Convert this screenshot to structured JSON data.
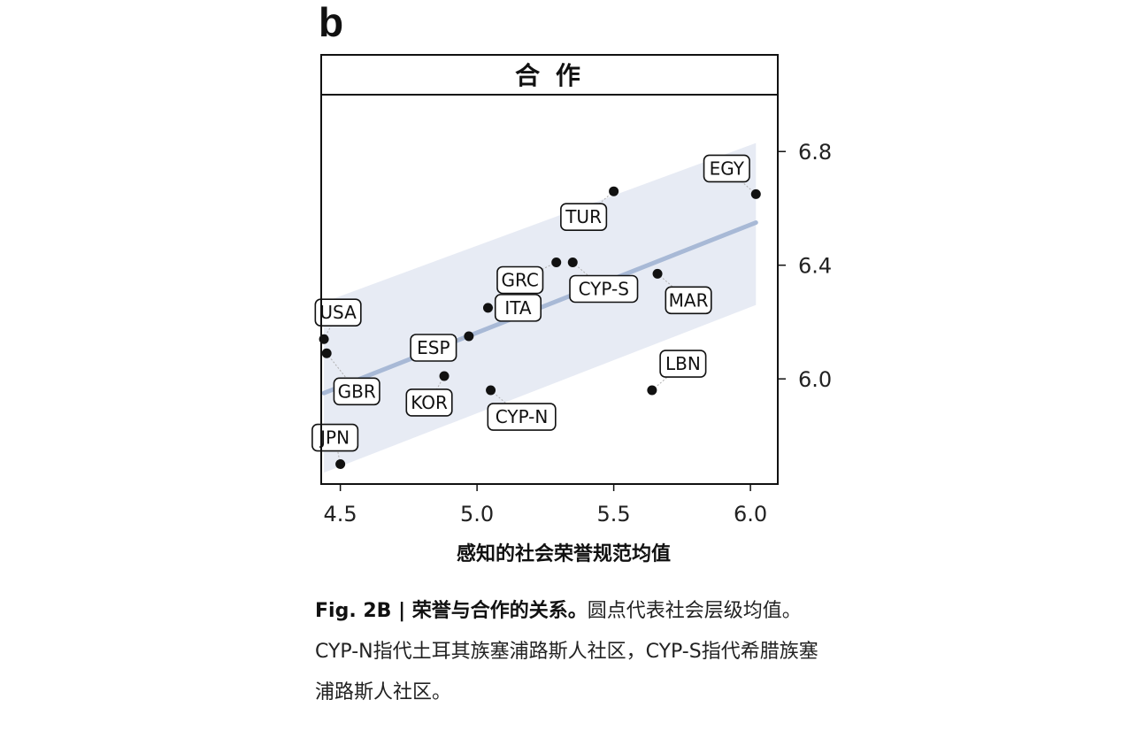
{
  "panel_letter": "b",
  "chart_data": {
    "type": "scatter",
    "title": "合 作",
    "xlabel": "感知的社会荣誉规范均值",
    "ylabel": "",
    "xlim": [
      4.43,
      6.1
    ],
    "ylim": [
      5.63,
      7.0
    ],
    "x_ticks": [
      {
        "value": 4.5,
        "label": "4.5"
      },
      {
        "value": 5.0,
        "label": "5.0"
      },
      {
        "value": 5.5,
        "label": "5.5"
      },
      {
        "value": 6.0,
        "label": "6.0"
      }
    ],
    "y_ticks": [
      {
        "value": 6.0,
        "label": "6.0"
      },
      {
        "value": 6.4,
        "label": "6.4"
      },
      {
        "value": 6.8,
        "label": "6.8"
      }
    ],
    "y_axis_side": "right",
    "grid": false,
    "points": [
      {
        "label": "JPN",
        "x": 4.5,
        "y": 5.7
      },
      {
        "label": "USA",
        "x": 4.44,
        "y": 6.14
      },
      {
        "label": "GBR",
        "x": 4.45,
        "y": 6.09
      },
      {
        "label": "ESP",
        "x": 4.97,
        "y": 6.15
      },
      {
        "label": "KOR",
        "x": 4.88,
        "y": 6.01
      },
      {
        "label": "ITA",
        "x": 5.04,
        "y": 6.25
      },
      {
        "label": "CYP-N",
        "x": 5.05,
        "y": 5.96
      },
      {
        "label": "GRC",
        "x": 5.29,
        "y": 6.41
      },
      {
        "label": "CYP-S",
        "x": 5.35,
        "y": 6.41
      },
      {
        "label": "TUR",
        "x": 5.5,
        "y": 6.66
      },
      {
        "label": "MAR",
        "x": 5.66,
        "y": 6.37
      },
      {
        "label": "LBN",
        "x": 5.64,
        "y": 5.96
      },
      {
        "label": "EGY",
        "x": 6.02,
        "y": 6.65
      }
    ],
    "fit": {
      "x_start": 4.44,
      "y_start": 5.95,
      "x_end": 6.02,
      "y_end": 6.55,
      "ci_upper_start": 6.27,
      "ci_upper_end": 6.83,
      "ci_lower_start": 5.67,
      "ci_lower_end": 6.26,
      "line_color": "#a8b9d6",
      "band_color": "#e4e9f3"
    },
    "point_color": "#111111"
  },
  "caption": {
    "fig_label": "Fig. 2B | ",
    "lead": "荣誉与合作的关系。",
    "text": "圆点代表社会层级均值。CYP-N指代土耳其族塞浦路斯人社区，CYP-S指代希腊族塞浦路斯人社区。"
  }
}
